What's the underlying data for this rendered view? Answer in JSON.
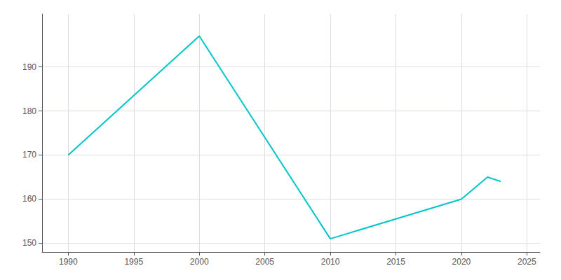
{
  "chart_data": {
    "type": "line",
    "x": [
      1990,
      2000,
      2010,
      2020,
      2022,
      2023
    ],
    "values": [
      170,
      197,
      151,
      160,
      165,
      164
    ],
    "color": "#00C5C8",
    "xlim": [
      1988,
      2026
    ],
    "ylim": [
      148,
      202
    ],
    "xticks": [
      1990,
      1995,
      2000,
      2005,
      2010,
      2015,
      2020,
      2025
    ],
    "yticks": [
      150,
      160,
      170,
      180,
      190
    ],
    "grid": true
  }
}
